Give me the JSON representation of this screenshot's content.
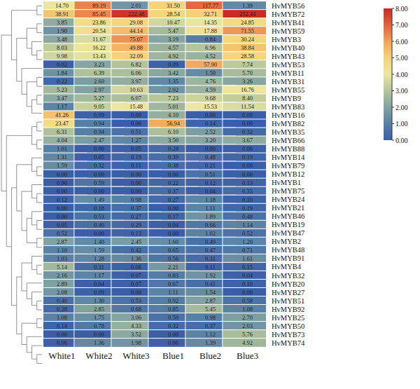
{
  "chart_data": {
    "type": "heatmap",
    "data_labels": true,
    "categories": [
      "White1",
      "White2",
      "White3",
      "Blue1",
      "Blue2",
      "Blue3"
    ],
    "rows": [
      "HvMYB56",
      "HvMYB72",
      "HvMYB41",
      "HvMYB59",
      "HvMYB3",
      "HvMYB40",
      "HvMYB43",
      "HvMYB53",
      "HvMYB11",
      "HvMYB31",
      "HvMYB55",
      "HvMYB9",
      "HvMYB83",
      "HvMYB16",
      "HvMYB82",
      "HvMYB35",
      "HvMYB66",
      "HvMYB88",
      "HvMYB14",
      "HvMYB79",
      "HvMYB12",
      "HvMYB1",
      "HvMYB75",
      "HvMYB24",
      "HvMYB21",
      "HvMYB46",
      "HvMYB19",
      "HvMYB47",
      "HvMYB2",
      "HvMYB48",
      "HvMYB91",
      "HvMYB4",
      "HvMYB32",
      "HvMYB20",
      "HvMYB27",
      "HvMYB51",
      "HvMYB92",
      "HvMYB25",
      "HvMYB50",
      "HvMYB73",
      "HvMYB74"
    ],
    "values": [
      [
        14.7,
        89.19,
        2.01,
        31.5,
        117.77,
        1.39
      ],
      [
        38.91,
        85.45,
        222.48,
        28.54,
        32.71,
        252.44
      ],
      [
        3.85,
        23.86,
        29.08,
        10.47,
        14.35,
        24.85
      ],
      [
        1.9,
        20.54,
        44.14,
        5.47,
        17.88,
        71.55
      ],
      [
        3.48,
        11.67,
        75.07,
        3.19,
        0.84,
        30.24
      ],
      [
        8.03,
        16.22,
        49.88,
        4.57,
        6.96,
        38.84
      ],
      [
        9.98,
        13.43,
        32.09,
        4.92,
        4.52,
        28.58
      ],
      [
        0.02,
        3.23,
        6.82,
        0.09,
        57.9,
        7.74
      ],
      [
        1.84,
        6.39,
        6.06,
        3.42,
        1.5,
        5.7
      ],
      [
        0.22,
        2.6,
        3.97,
        1.35,
        4.76,
        3.26
      ],
      [
        5.23,
        2.97,
        10.63,
        2.02,
        4.59,
        16.76
      ],
      [
        3.47,
        5.27,
        6.07,
        7.23,
        9.68,
        8.4
      ],
      [
        1.17,
        9.05,
        15.48,
        5.01,
        15.53,
        11.54
      ],
      [
        41.26,
        0.09,
        0.0,
        4.1,
        0.0,
        0.0
      ],
      [
        23.47,
        0.94,
        0.0,
        56.94,
        0.14,
        0.0
      ],
      [
        6.31,
        0.94,
        0.51,
        6.1,
        2.52,
        0.32
      ],
      [
        4.04,
        2.47,
        1.27,
        3.5,
        3.2,
        3.67
      ],
      [
        1.01,
        0.0,
        0.05,
        0.28,
        0.0,
        0.06
      ],
      [
        1.31,
        0.05,
        0.19,
        0.39,
        0.48,
        0.19
      ],
      [
        1.59,
        0.32,
        0.11,
        0.38,
        0.21,
        0.0
      ],
      [
        0.0,
        0.0,
        0.0,
        0.0,
        0.51,
        0.0
      ],
      [
        0.0,
        0.59,
        0.0,
        0.22,
        0.12,
        0.13
      ],
      [
        0.0,
        0.0,
        0.0,
        0.37,
        0.04,
        0.33
      ],
      [
        0.12,
        1.49,
        0.98,
        0.27,
        1.18,
        0.1
      ],
      [
        0.0,
        0.18,
        0.37,
        0.0,
        1.11,
        0.19
      ],
      [
        0.0,
        0.53,
        0.27,
        0.17,
        1.89,
        0.48
      ],
      [
        0.05,
        0.4,
        0.29,
        0.04,
        0.66,
        1.14
      ],
      [
        0.52,
        0.0,
        0.13,
        0.0,
        1.02,
        0.52
      ],
      [
        2.87,
        1.4,
        2.45,
        1.6,
        0.49,
        1.2
      ],
      [
        1.1,
        1.59,
        0.42,
        0.65,
        0.47,
        0.71
      ],
      [
        1.03,
        1.28,
        1.36,
        0.56,
        0.31,
        1.61
      ],
      [
        5.14,
        0.31,
        0.08,
        2.21,
        0.11,
        0.15
      ],
      [
        2.16,
        1.17,
        0.07,
        0.83,
        1.92,
        0.04
      ],
      [
        2.89,
        0.04,
        0.07,
        0.67,
        0.41,
        0.1
      ],
      [
        2.08,
        0.09,
        0.0,
        1.11,
        1.54,
        0.0
      ],
      [
        0.4,
        1.3,
        0.53,
        0.92,
        2.87,
        0.58
      ],
      [
        0.28,
        2.85,
        0.68,
        0.85,
        5.45,
        1.08
      ],
      [
        1.08,
        1.75,
        3.06,
        0.5,
        0.98,
        2.7
      ],
      [
        0.14,
        0.78,
        4.33,
        0.32,
        0.37,
        2.03
      ],
      [
        0.0,
        0.0,
        3.52,
        0.0,
        1.12,
        5.76
      ],
      [
        0.06,
        1.36,
        1.98,
        0.06,
        1.39,
        4.92
      ]
    ],
    "value_labels": [
      [
        "14.70",
        "89.19",
        "2.01",
        "31.50",
        "117.77",
        "1.39"
      ],
      [
        "38.91",
        "85.45",
        "222.48",
        "28.54",
        "32.71",
        "252.44"
      ],
      [
        "3.85",
        "23.86",
        "29.08",
        "10.47",
        "14.35",
        "24.85"
      ],
      [
        "1.90",
        "20.54",
        "44.14",
        "5.47",
        "17.88",
        "71.55"
      ],
      [
        "3.48",
        "11.67",
        "75.07",
        "3.19",
        "0.84",
        "30.24"
      ],
      [
        "8.03",
        "16.22",
        "49.88",
        "4.57",
        "6.96",
        "38.84"
      ],
      [
        "9.98",
        "13.43",
        "32.09",
        "4.92",
        "4.52",
        "28.58"
      ],
      [
        "0.02",
        "3.23",
        "6.82",
        "0.09",
        "57.90",
        "7.74"
      ],
      [
        "1.84",
        "6.39",
        "6.06",
        "3.42",
        "1.50",
        "5.70"
      ],
      [
        "0.22",
        "2.60",
        "3.97",
        "1.35",
        "4.76",
        "3.26"
      ],
      [
        "5.23",
        "2.97",
        "10.63",
        "2.02",
        "4.59",
        "16.76"
      ],
      [
        "3.47",
        "5.27",
        "6.07",
        "7.23",
        "9.68",
        "8.40"
      ],
      [
        "1.17",
        "9.05",
        "15.48",
        "5.01",
        "15.53",
        "11.54"
      ],
      [
        "41.26",
        "0.09",
        "0.00",
        "4.10",
        "0.00",
        "0.00"
      ],
      [
        "23.47",
        "0.94",
        "0.00",
        "56.94",
        "0.14",
        "0.00"
      ],
      [
        "6.31",
        "0.94",
        "0.51",
        "6.10",
        "2.52",
        "0.32"
      ],
      [
        "4.04",
        "2.47",
        "1.27",
        "3.50",
        "3.20",
        "3.67"
      ],
      [
        "1.01",
        "0.00",
        "0.05",
        "0.28",
        "0.00",
        "0.06"
      ],
      [
        "1.31",
        "0.05",
        "0.19",
        "0.39",
        "0.48",
        "0.19"
      ],
      [
        "1.59",
        "0.32",
        "0.11",
        "0.38",
        "0.21",
        "0.00"
      ],
      [
        "0.00",
        "0.00",
        "0.00",
        "0.00",
        "0.51",
        "0.00"
      ],
      [
        "0.00",
        "0.59",
        "0.00",
        "0.22",
        "0.12",
        "0.13"
      ],
      [
        "0.00",
        "0.00",
        "0.00",
        "0.37",
        "0.04",
        "0.33"
      ],
      [
        "0.12",
        "1.49",
        "0.98",
        "0.27",
        "1.18",
        "0.10"
      ],
      [
        "0.00",
        "0.18",
        "0.37",
        "0.00",
        "1.11",
        "0.19"
      ],
      [
        "0.00",
        "0.53",
        "0.27",
        "0.17",
        "1.89",
        "0.48"
      ],
      [
        "0.05",
        "0.40",
        "0.29",
        "0.04",
        "0.66",
        "1.14"
      ],
      [
        "0.52",
        "0.00",
        "0.13",
        "0.00",
        "1.02",
        "0.52"
      ],
      [
        "2.87",
        "1.40",
        "2.45",
        "1.60",
        "0.49",
        "1.20"
      ],
      [
        "1.10",
        "1.59",
        "0.42",
        "0.65",
        "0.47",
        "0.71"
      ],
      [
        "1.03",
        "1.28",
        "1.36",
        "0.56",
        "0.31",
        "1.61"
      ],
      [
        "5.14",
        "0.31",
        "0.08",
        "2.21",
        "0.11",
        "0.15"
      ],
      [
        "2.16",
        "1.17",
        "0.07",
        "0.83",
        "1.92",
        "0.04"
      ],
      [
        "2.89",
        "0.04",
        "0.07",
        "0.67",
        "0.41",
        "0.10"
      ],
      [
        "2.08",
        "0.09",
        "0.00",
        "1.11",
        "1.54",
        "0.00"
      ],
      [
        "0.40",
        "1.30",
        "0.53",
        "0.92",
        "2.87",
        "0.58"
      ],
      [
        "0.28",
        "2.85",
        "0.68",
        "0.85",
        "5.45",
        "1.08"
      ],
      [
        "1.08",
        "1.75",
        "3.06",
        "0.50",
        "0.98",
        "2.70"
      ],
      [
        "0.14",
        "0.78",
        "4.33",
        "0.32",
        "0.37",
        "2.03"
      ],
      [
        "0.00",
        "0.00",
        "3.52",
        "0.00",
        "1.12",
        "5.76"
      ],
      [
        "0.06",
        "1.36",
        "1.98",
        "0.06",
        "1.39",
        "4.92"
      ]
    ],
    "colorbar": {
      "range": [
        0,
        8
      ],
      "ticks": [
        {
          "value": 0,
          "label": "0.00"
        },
        {
          "value": 1,
          "label": "1.00"
        },
        {
          "value": 2,
          "label": "2.00"
        },
        {
          "value": 3,
          "label": "3.00"
        },
        {
          "value": 4,
          "label": "4.00"
        },
        {
          "value": 5,
          "label": "5.00"
        },
        {
          "value": 6,
          "label": "6.00"
        },
        {
          "value": 7,
          "label": "7.00"
        },
        {
          "value": 8,
          "label": "8.00"
        }
      ]
    }
  }
}
